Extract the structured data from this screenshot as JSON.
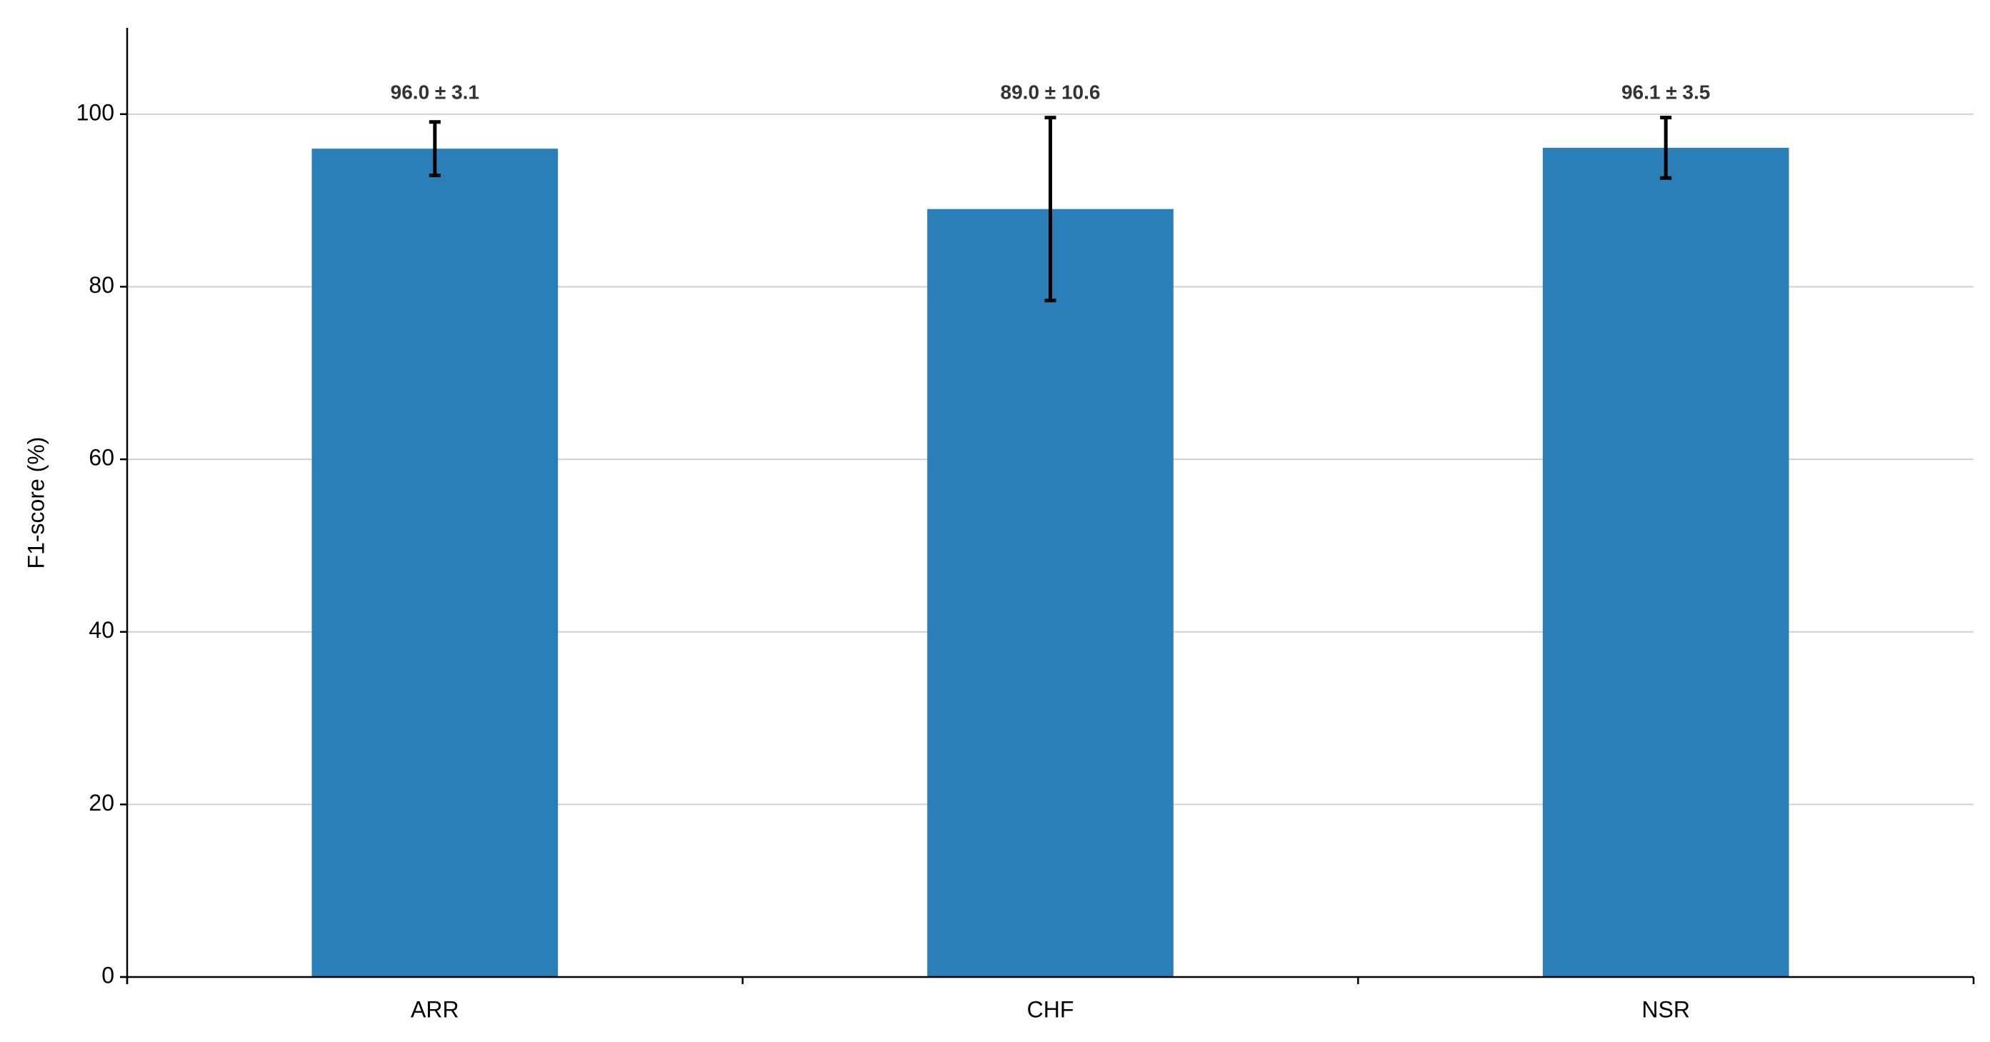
{
  "chart_data": {
    "type": "bar",
    "ylabel": "F1-score (%)",
    "categories": [
      "ARR",
      "CHF",
      "NSR"
    ],
    "values": [
      96.0,
      89.0,
      96.1
    ],
    "errors": [
      3.1,
      10.6,
      3.5
    ],
    "value_labels": [
      "96.0 ± 3.1",
      "89.0 ± 10.6",
      "96.1 ± 3.5"
    ],
    "color": "#2a7fb8",
    "ylim": [
      0,
      110
    ],
    "yticks": [
      0,
      20,
      40,
      60,
      80,
      100
    ],
    "grid": true
  }
}
